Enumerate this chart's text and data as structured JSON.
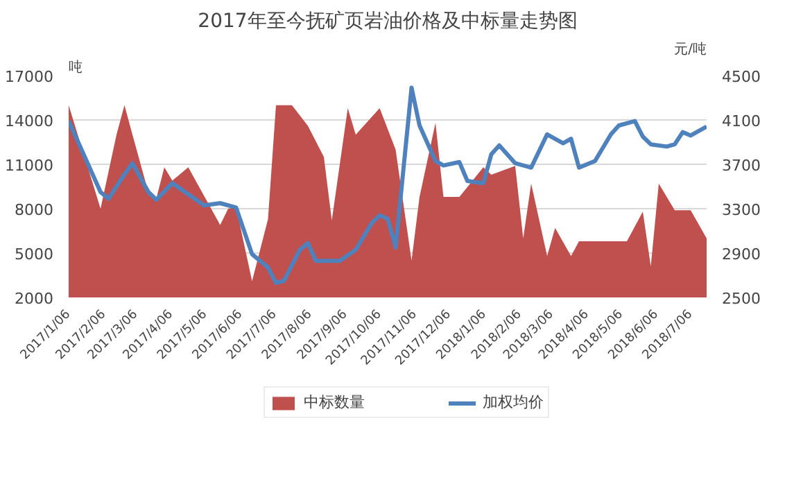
{
  "chart_data": {
    "type": "area",
    "title": "2017年至今抚矿页岩油价格及中标量走势图",
    "ylabel": "吨",
    "y2label": "元/吨",
    "series": [
      {
        "name": "中标数量",
        "color": "#c0504d",
        "x": [
          "2017-01-06",
          "2017-02-03",
          "2017-02-17",
          "2017-02-24",
          "2017-03-03",
          "2017-03-17",
          "2017-03-24",
          "2017-03-31",
          "2017-04-07",
          "2017-04-21",
          "2017-05-19",
          "2017-05-26",
          "2017-06-02",
          "2017-06-16",
          "2017-06-30",
          "2017-07-07",
          "2017-07-21",
          "2017-08-04",
          "2017-08-18",
          "2017-08-25",
          "2017-09-08",
          "2017-09-15",
          "2017-10-06",
          "2017-10-20",
          "2017-11-03",
          "2017-11-10",
          "2017-11-24",
          "2017-12-01",
          "2017-12-15",
          "2018-01-05",
          "2018-01-12",
          "2018-02-02",
          "2018-02-09",
          "2018-02-16",
          "2018-03-02",
          "2018-03-09",
          "2018-03-23",
          "2018-03-30",
          "2018-05-11",
          "2018-05-25",
          "2018-06-01",
          "2018-06-08",
          "2018-06-22",
          "2018-07-06",
          "2018-07-20"
        ],
        "values": [
          15000,
          8000,
          13000,
          15000,
          13000,
          9100,
          8700,
          10800,
          9900,
          10800,
          6900,
          8000,
          8100,
          3100,
          7300,
          15000,
          15000,
          13600,
          11500,
          7200,
          14800,
          13000,
          14800,
          12000,
          4500,
          8800,
          13800,
          8800,
          8800,
          10800,
          10300,
          10900,
          6000,
          9700,
          4800,
          6700,
          4800,
          5800,
          5800,
          7800,
          4100,
          9700,
          7900,
          7900,
          6000
        ]
      },
      {
        "name": "加权均价",
        "type": "line",
        "axis": "y2",
        "color": "#4f81bd",
        "x": [
          "2017-01-06",
          "2017-02-03",
          "2017-02-10",
          "2017-02-24",
          "2017-03-03",
          "2017-03-17",
          "2017-03-24",
          "2017-04-07",
          "2017-05-05",
          "2017-05-19",
          "2017-06-02",
          "2017-06-16",
          "2017-06-30",
          "2017-07-07",
          "2017-07-14",
          "2017-07-28",
          "2017-08-04",
          "2017-08-11",
          "2017-09-01",
          "2017-09-15",
          "2017-09-29",
          "2017-10-06",
          "2017-10-13",
          "2017-10-20",
          "2017-11-03",
          "2017-11-10",
          "2017-11-24",
          "2017-12-01",
          "2017-12-15",
          "2017-12-22",
          "2018-01-05",
          "2018-01-12",
          "2018-01-19",
          "2018-02-02",
          "2018-02-16",
          "2018-03-02",
          "2018-03-16",
          "2018-03-23",
          "2018-03-30",
          "2018-04-13",
          "2018-04-27",
          "2018-05-04",
          "2018-05-18",
          "2018-05-25",
          "2018-06-01",
          "2018-06-15",
          "2018-06-22",
          "2018-06-29",
          "2018-07-06",
          "2018-07-20"
        ],
        "values": [
          4090,
          3450,
          3390,
          3610,
          3710,
          3450,
          3380,
          3530,
          3330,
          3350,
          3310,
          2890,
          2770,
          2630,
          2650,
          2930,
          2990,
          2830,
          2830,
          2930,
          3170,
          3240,
          3210,
          2950,
          4390,
          4050,
          3730,
          3690,
          3720,
          3550,
          3530,
          3790,
          3870,
          3710,
          3670,
          3970,
          3890,
          3930,
          3670,
          3730,
          3970,
          4050,
          4090,
          3950,
          3880,
          3860,
          3880,
          3990,
          3960,
          4040
        ]
      }
    ],
    "xlim": [
      "2017-01-06",
      "2018-07-20"
    ],
    "xticks": [
      {
        "value": "2017-01-06",
        "label": "2017/1/06"
      },
      {
        "value": "2017-02-06",
        "label": "2017/2/06"
      },
      {
        "value": "2017-03-06",
        "label": "2017/3/06"
      },
      {
        "value": "2017-04-06",
        "label": "2017/4/06"
      },
      {
        "value": "2017-05-06",
        "label": "2017/5/06"
      },
      {
        "value": "2017-06-06",
        "label": "2017/6/06"
      },
      {
        "value": "2017-07-06",
        "label": "2017/7/06"
      },
      {
        "value": "2017-08-06",
        "label": "2017/8/06"
      },
      {
        "value": "2017-09-06",
        "label": "2017/9/06"
      },
      {
        "value": "2017-10-06",
        "label": "2017/10/06"
      },
      {
        "value": "2017-11-06",
        "label": "2017/11/06"
      },
      {
        "value": "2017-12-06",
        "label": "2017/12/06"
      },
      {
        "value": "2018-01-06",
        "label": "2018/1/06"
      },
      {
        "value": "2018-02-06",
        "label": "2018/2/06"
      },
      {
        "value": "2018-03-06",
        "label": "2018/3/06"
      },
      {
        "value": "2018-04-06",
        "label": "2018/4/06"
      },
      {
        "value": "2018-05-06",
        "label": "2018/5/06"
      },
      {
        "value": "2018-06-06",
        "label": "2018/6/06"
      },
      {
        "value": "2018-07-06",
        "label": "2018/7/06"
      }
    ],
    "ylim": [
      2000,
      17000
    ],
    "yticks": [
      2000,
      5000,
      8000,
      11000,
      14000,
      17000
    ],
    "y2lim": [
      2500,
      4500
    ],
    "y2ticks": [
      2500,
      2900,
      3300,
      3700,
      4100,
      4500
    ],
    "grid": "y",
    "legend": "bottom",
    "marker": "none",
    "line_style": "solid"
  }
}
